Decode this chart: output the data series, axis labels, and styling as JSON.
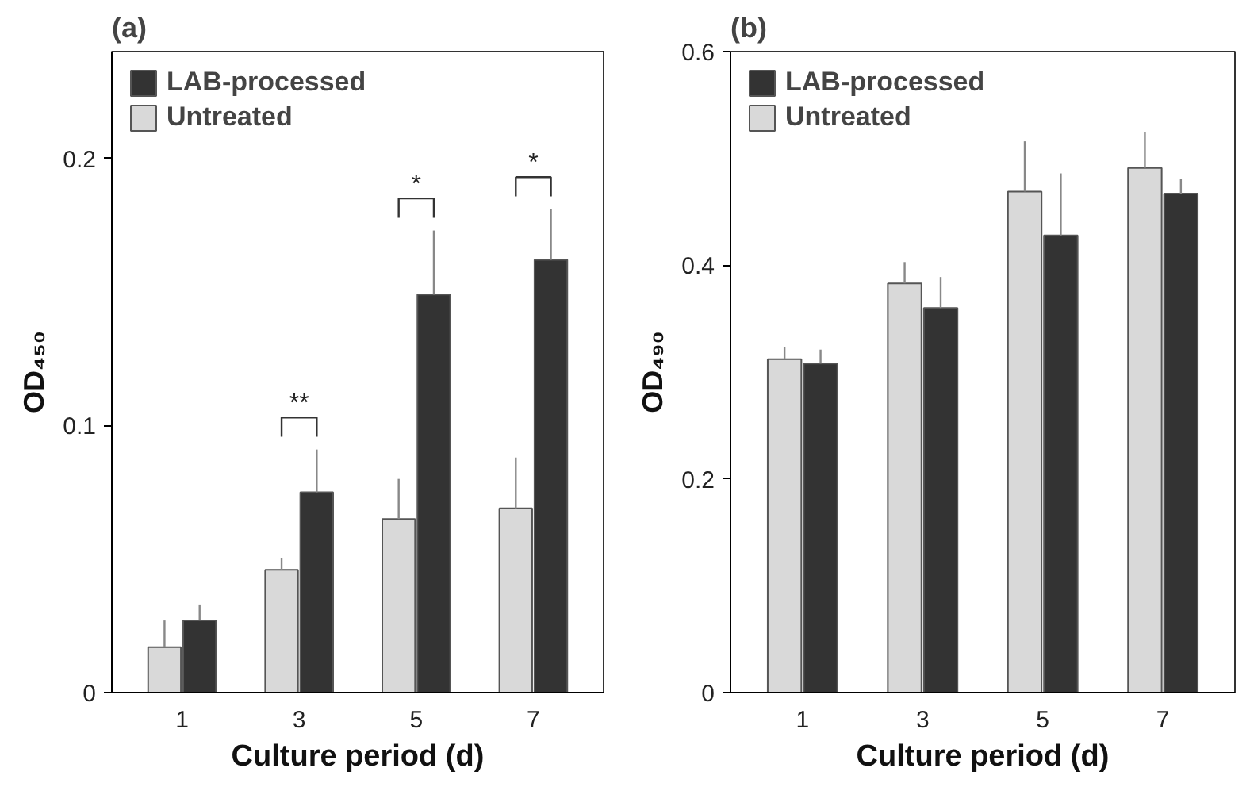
{
  "chart_data": [
    {
      "type": "bar",
      "title": "(a)",
      "xlabel": "Culture period (d)",
      "ylabel": "OD₄₅₀",
      "categories": [
        "1",
        "3",
        "5",
        "7"
      ],
      "ylim": [
        0,
        0.24
      ],
      "yticks": [
        0,
        0.1,
        0.2
      ],
      "grid": false,
      "legend": "top left",
      "series": [
        {
          "name": "Untreated",
          "color": "#d9d9d9",
          "values": [
            0.017,
            0.046,
            0.065,
            0.069
          ],
          "errors": [
            [
              0.017,
              0.027
            ],
            [
              0.046,
              0.0505
            ],
            [
              0.065,
              0.08
            ],
            [
              0.069,
              0.088
            ]
          ]
        },
        {
          "name": "LAB-processed",
          "color": "#333333",
          "values": [
            0.027,
            0.075,
            0.149,
            0.162
          ],
          "errors": [
            [
              0.027,
              0.033
            ],
            [
              0.075,
              0.091
            ],
            [
              0.149,
              0.173
            ],
            [
              0.162,
              0.181
            ]
          ]
        }
      ],
      "annotations": [
        "**",
        "*",
        "*"
      ]
    },
    {
      "type": "bar",
      "title": "(b)",
      "xlabel": "Culture period (d)",
      "ylabel": "OD₄₉₀",
      "categories": [
        "1",
        "3",
        "5",
        "7"
      ],
      "ylim": [
        0,
        0.6
      ],
      "yticks": [
        0,
        0.2,
        0.4,
        0.6
      ],
      "grid": false,
      "legend": "top left",
      "series": [
        {
          "name": "Untreated",
          "color": "#d9d9d9",
          "values": [
            0.312,
            0.383,
            0.469,
            0.491
          ],
          "errors": [
            [
              0.312,
              0.323
            ],
            [
              0.383,
              0.403
            ],
            [
              0.469,
              0.516
            ],
            [
              0.491,
              0.525
            ]
          ]
        },
        {
          "name": "LAB-processed",
          "color": "#333333",
          "values": [
            0.308,
            0.36,
            0.428,
            0.467
          ],
          "errors": [
            [
              0.308,
              0.321
            ],
            [
              0.36,
              0.389
            ],
            [
              0.428,
              0.486
            ],
            [
              0.467,
              0.481
            ]
          ]
        }
      ]
    }
  ]
}
